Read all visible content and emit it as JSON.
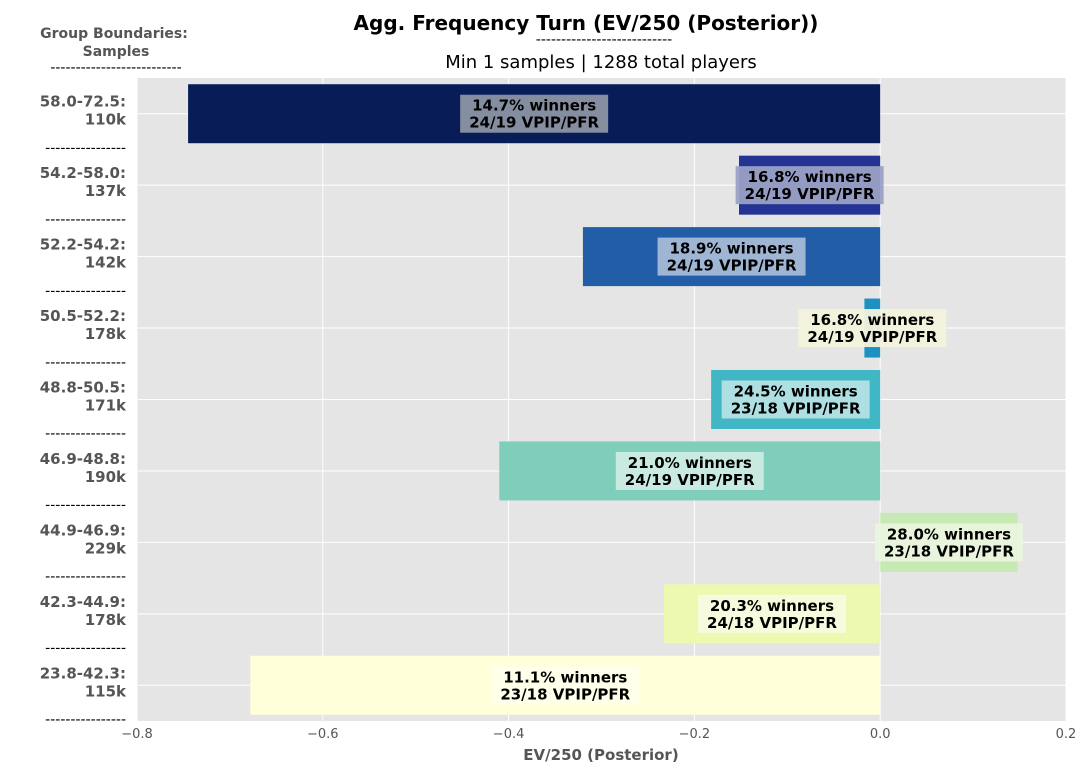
{
  "chart_data": {
    "type": "bar",
    "orientation": "horizontal",
    "title": "Agg. Frequency Turn (EV/250 (Posterior))",
    "title_underline": "---------------------------",
    "subtitle": "Min 1 samples | 1288 total players",
    "corner_label": [
      "Group Boundaries:",
      "Samples"
    ],
    "corner_underline": "--------------------------",
    "separator": "----------------",
    "xlabel": "EV/250 (Posterior)",
    "xlim": [
      -0.8,
      0.2
    ],
    "xticks": [
      "−0.8",
      "−0.6",
      "−0.4",
      "−0.2",
      "0.0",
      "0.2"
    ],
    "grid": true,
    "categories": [
      {
        "range": "58.0-72.5:",
        "samples": "110k",
        "value": -0.745,
        "winners": "14.7% winners",
        "vpip": "24/19 VPIP/PFR",
        "color": "#081d58",
        "label_bg": "#8c95a5"
      },
      {
        "range": "54.2-58.0:",
        "samples": "137k",
        "value": -0.152,
        "winners": "16.8% winners",
        "vpip": "24/19 VPIP/PFR",
        "color": "#253494",
        "label_bg": "#9aa1c5"
      },
      {
        "range": "52.2-54.2:",
        "samples": "142k",
        "value": -0.32,
        "winners": "18.9% winners",
        "vpip": "24/19 VPIP/PFR",
        "color": "#225ea8",
        "label_bg": "#a5bbd6"
      },
      {
        "range": "50.5-52.2:",
        "samples": "178k",
        "value": -0.017,
        "winners": "16.8% winners",
        "vpip": "24/19 VPIP/PFR",
        "color": "#1d91c0",
        "label_bg": "#f3f3dc"
      },
      {
        "range": "48.8-50.5:",
        "samples": "171k",
        "value": -0.182,
        "winners": "24.5% winners",
        "vpip": "23/18 VPIP/PFR",
        "color": "#41b6c4",
        "label_bg": "#b4e1e4"
      },
      {
        "range": "46.9-48.8:",
        "samples": "190k",
        "value": -0.41,
        "winners": "21.0% winners",
        "vpip": "24/19 VPIP/PFR",
        "color": "#7fcdbb",
        "label_bg": "#cdebe3"
      },
      {
        "range": "44.9-46.9:",
        "samples": "229k",
        "value": 0.148,
        "winners": "28.0% winners",
        "vpip": "23/18 VPIP/PFR",
        "color": "#c7e9b4",
        "label_bg": "#eaf5de"
      },
      {
        "range": "42.3-44.9:",
        "samples": "178k",
        "value": -0.233,
        "winners": "20.3% winners",
        "vpip": "24/18 VPIP/PFR",
        "color": "#edf8b1",
        "label_bg": "#f8fbdf"
      },
      {
        "range": "23.8-42.3:",
        "samples": "115k",
        "value": -0.678,
        "winners": "11.1% winners",
        "vpip": "23/18 VPIP/PFR",
        "color": "#ffffd9",
        "label_bg": "#ffffeb"
      }
    ]
  }
}
